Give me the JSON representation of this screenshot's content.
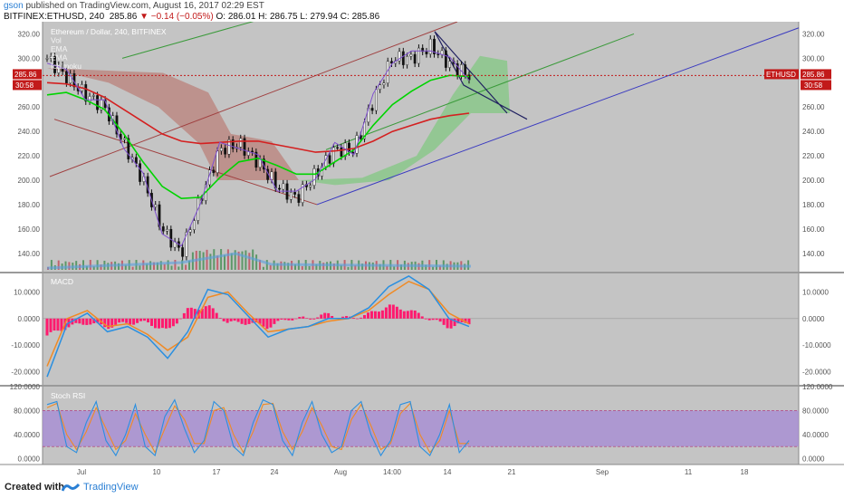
{
  "header": {
    "user": "gson",
    "published": " published on TradingView.com, August 16, 2017 02:29 EST",
    "symbol": "BITFINEX:ETHUSD, 240",
    "last": "285.86",
    "change": "−0.14 (−0.05%)",
    "ohlc": "O: 286.01  H: 286.75  L: 279.94  C: 285.86"
  },
  "legend": [
    "Ethereum / Dollar, 240, BITFINEX",
    "Vol",
    "EMA",
    "EMA",
    "Ichimoku"
  ],
  "footer": {
    "created": "Created with",
    "brand": "TradingView"
  },
  "colors": {
    "background": "#c4c4c4",
    "cloud_green": "#7fc97f",
    "cloud_red": "#b86a60",
    "ema_fast": "#00d400",
    "ema_slow": "#d42020",
    "macd": "#2a8fe0",
    "signal": "#f08a24",
    "hist": "#ff1a6e",
    "stoch_band": "#a58ad6"
  },
  "chart_data": [
    {
      "type": "line",
      "name": "Ethereum / Dollar, 240, BITFINEX",
      "ylim": [
        125,
        330
      ],
      "y_ticks": [
        "140.00",
        "160.00",
        "180.00",
        "200.00",
        "220.00",
        "240.00",
        "260.00",
        "280.00",
        "300.00",
        "320.00"
      ],
      "y_tick_values": [
        140,
        160,
        180,
        200,
        220,
        240,
        260,
        280,
        300,
        320
      ],
      "x_ticks": [
        "Jul",
        "10",
        "17",
        "24",
        "Aug",
        "14:00",
        "14",
        "21",
        "Sep",
        "11",
        "18"
      ],
      "x": [
        "Jun 27",
        "Jul 1",
        "Jul 4",
        "Jul 7",
        "Jul 10",
        "Jul 13",
        "Jul 15",
        "Jul 16",
        "Jul 17",
        "Jul 19",
        "Jul 21",
        "Jul 24",
        "Jul 27",
        "Jul 29",
        "Jul 31",
        "Aug 2",
        "Aug 4",
        "Aug 6",
        "Aug 8",
        "Aug 10",
        "Aug 12",
        "Aug 14",
        "Aug 16"
      ],
      "close": [
        300,
        285,
        270,
        260,
        230,
        200,
        160,
        140,
        185,
        225,
        230,
        215,
        195,
        185,
        205,
        225,
        225,
        265,
        300,
        300,
        310,
        295,
        285.86
      ],
      "ema_fast": [
        270,
        272,
        266,
        258,
        238,
        215,
        195,
        185,
        186,
        202,
        215,
        218,
        212,
        205,
        205,
        215,
        225,
        245,
        262,
        273,
        282,
        286,
        285
      ],
      "ema_slow": [
        280,
        279,
        275,
        268,
        258,
        248,
        238,
        232,
        230,
        231,
        232,
        232,
        229,
        226,
        223,
        224,
        226,
        232,
        240,
        245,
        250,
        253,
        255
      ],
      "last_label": "285.86",
      "symbol_label": "ETHUSD",
      "countdown_label": "30:58"
    },
    {
      "type": "line",
      "name": "MACD",
      "ylim": [
        -25,
        17
      ],
      "y_ticks": [
        "10.0000",
        "0.0000",
        "-10.0000",
        "-20.0000"
      ],
      "y_tick_values": [
        10,
        0,
        -10,
        -20
      ],
      "x": [
        "Jun 27",
        "Jul 1",
        "Jul 4",
        "Jul 7",
        "Jul 10",
        "Jul 13",
        "Jul 15",
        "Jul 17",
        "Jul 19",
        "Jul 21",
        "Jul 24",
        "Jul 27",
        "Jul 29",
        "Jul 31",
        "Aug 2",
        "Aug 4",
        "Aug 6",
        "Aug 8",
        "Aug 10",
        "Aug 12",
        "Aug 14",
        "Aug 16"
      ],
      "series": [
        {
          "name": "MACD",
          "values": [
            -22,
            -2,
            2,
            -5,
            -3,
            -7,
            -15,
            -5,
            11,
            9,
            1,
            -7,
            -4,
            -3,
            0,
            0,
            4,
            12,
            16,
            11,
            0,
            -3
          ]
        },
        {
          "name": "Signal",
          "values": [
            -18,
            0,
            3,
            -3,
            -2,
            -6,
            -12,
            -7,
            8,
            10,
            2,
            -5,
            -4,
            -3,
            -1,
            0,
            3,
            9,
            14,
            11,
            2,
            -2
          ]
        }
      ]
    },
    {
      "type": "line",
      "name": "Stoch RSI",
      "ylim": [
        -10,
        120
      ],
      "y_ticks": [
        "120.0000",
        "80.0000",
        "40.0000",
        "0.0000"
      ],
      "y_tick_values": [
        120,
        80,
        40,
        0
      ],
      "band": [
        20,
        80
      ],
      "series": [
        {
          "name": "K",
          "values": [
            90,
            95,
            20,
            10,
            60,
            95,
            30,
            5,
            40,
            90,
            20,
            5,
            70,
            98,
            50,
            10,
            30,
            95,
            80,
            20,
            5,
            60,
            98,
            90,
            30,
            5,
            60,
            95,
            40,
            10,
            20,
            80,
            95,
            40,
            5,
            30,
            90,
            95,
            20,
            5,
            40,
            90,
            10,
            30
          ]
        },
        {
          "name": "D",
          "values": [
            85,
            92,
            40,
            15,
            45,
            85,
            50,
            15,
            30,
            75,
            40,
            10,
            50,
            88,
            65,
            25,
            25,
            80,
            85,
            40,
            10,
            45,
            90,
            92,
            45,
            15,
            45,
            85,
            55,
            20,
            15,
            65,
            90,
            55,
            15,
            25,
            75,
            92,
            40,
            10,
            30,
            80,
            25,
            25
          ]
        }
      ]
    }
  ]
}
